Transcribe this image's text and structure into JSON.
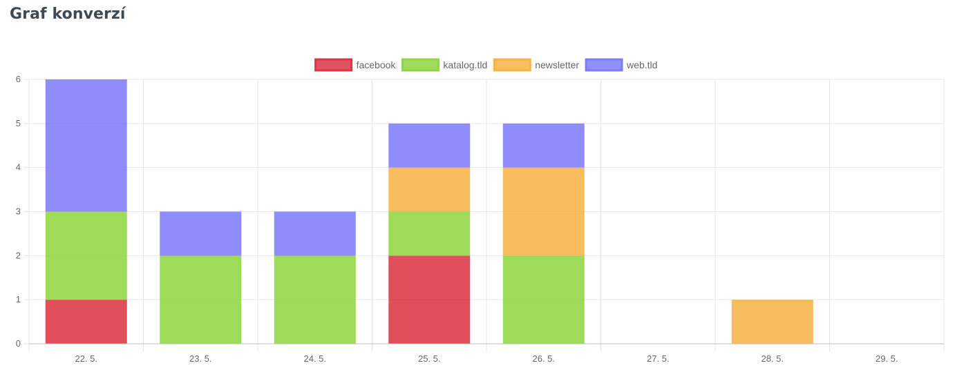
{
  "page": {
    "title": "Graf konverzí"
  },
  "chart_data": {
    "type": "bar",
    "stacked": true,
    "categories": [
      "22. 5.",
      "23. 5.",
      "24. 5.",
      "25. 5.",
      "26. 5.",
      "27. 5.",
      "28. 5.",
      "29. 5."
    ],
    "series": [
      {
        "name": "facebook",
        "color": "#dc3545",
        "values": [
          1,
          0,
          0,
          2,
          0,
          0,
          0,
          0
        ]
      },
      {
        "name": "katalog.tld",
        "color": "#8fd642",
        "values": [
          2,
          2,
          2,
          1,
          2,
          0,
          0,
          0
        ]
      },
      {
        "name": "newsletter",
        "color": "#f6b347",
        "values": [
          0,
          0,
          0,
          1,
          2,
          0,
          1,
          0
        ]
      },
      {
        "name": "web.tld",
        "color": "#7f7cfc",
        "values": [
          3,
          1,
          1,
          1,
          1,
          0,
          0,
          0
        ]
      }
    ],
    "ylim": [
      0,
      6
    ],
    "yticks": [
      0,
      1,
      2,
      3,
      4,
      5,
      6
    ],
    "grid": true,
    "legend_position": "top-center",
    "xlabel": "",
    "ylabel": ""
  }
}
